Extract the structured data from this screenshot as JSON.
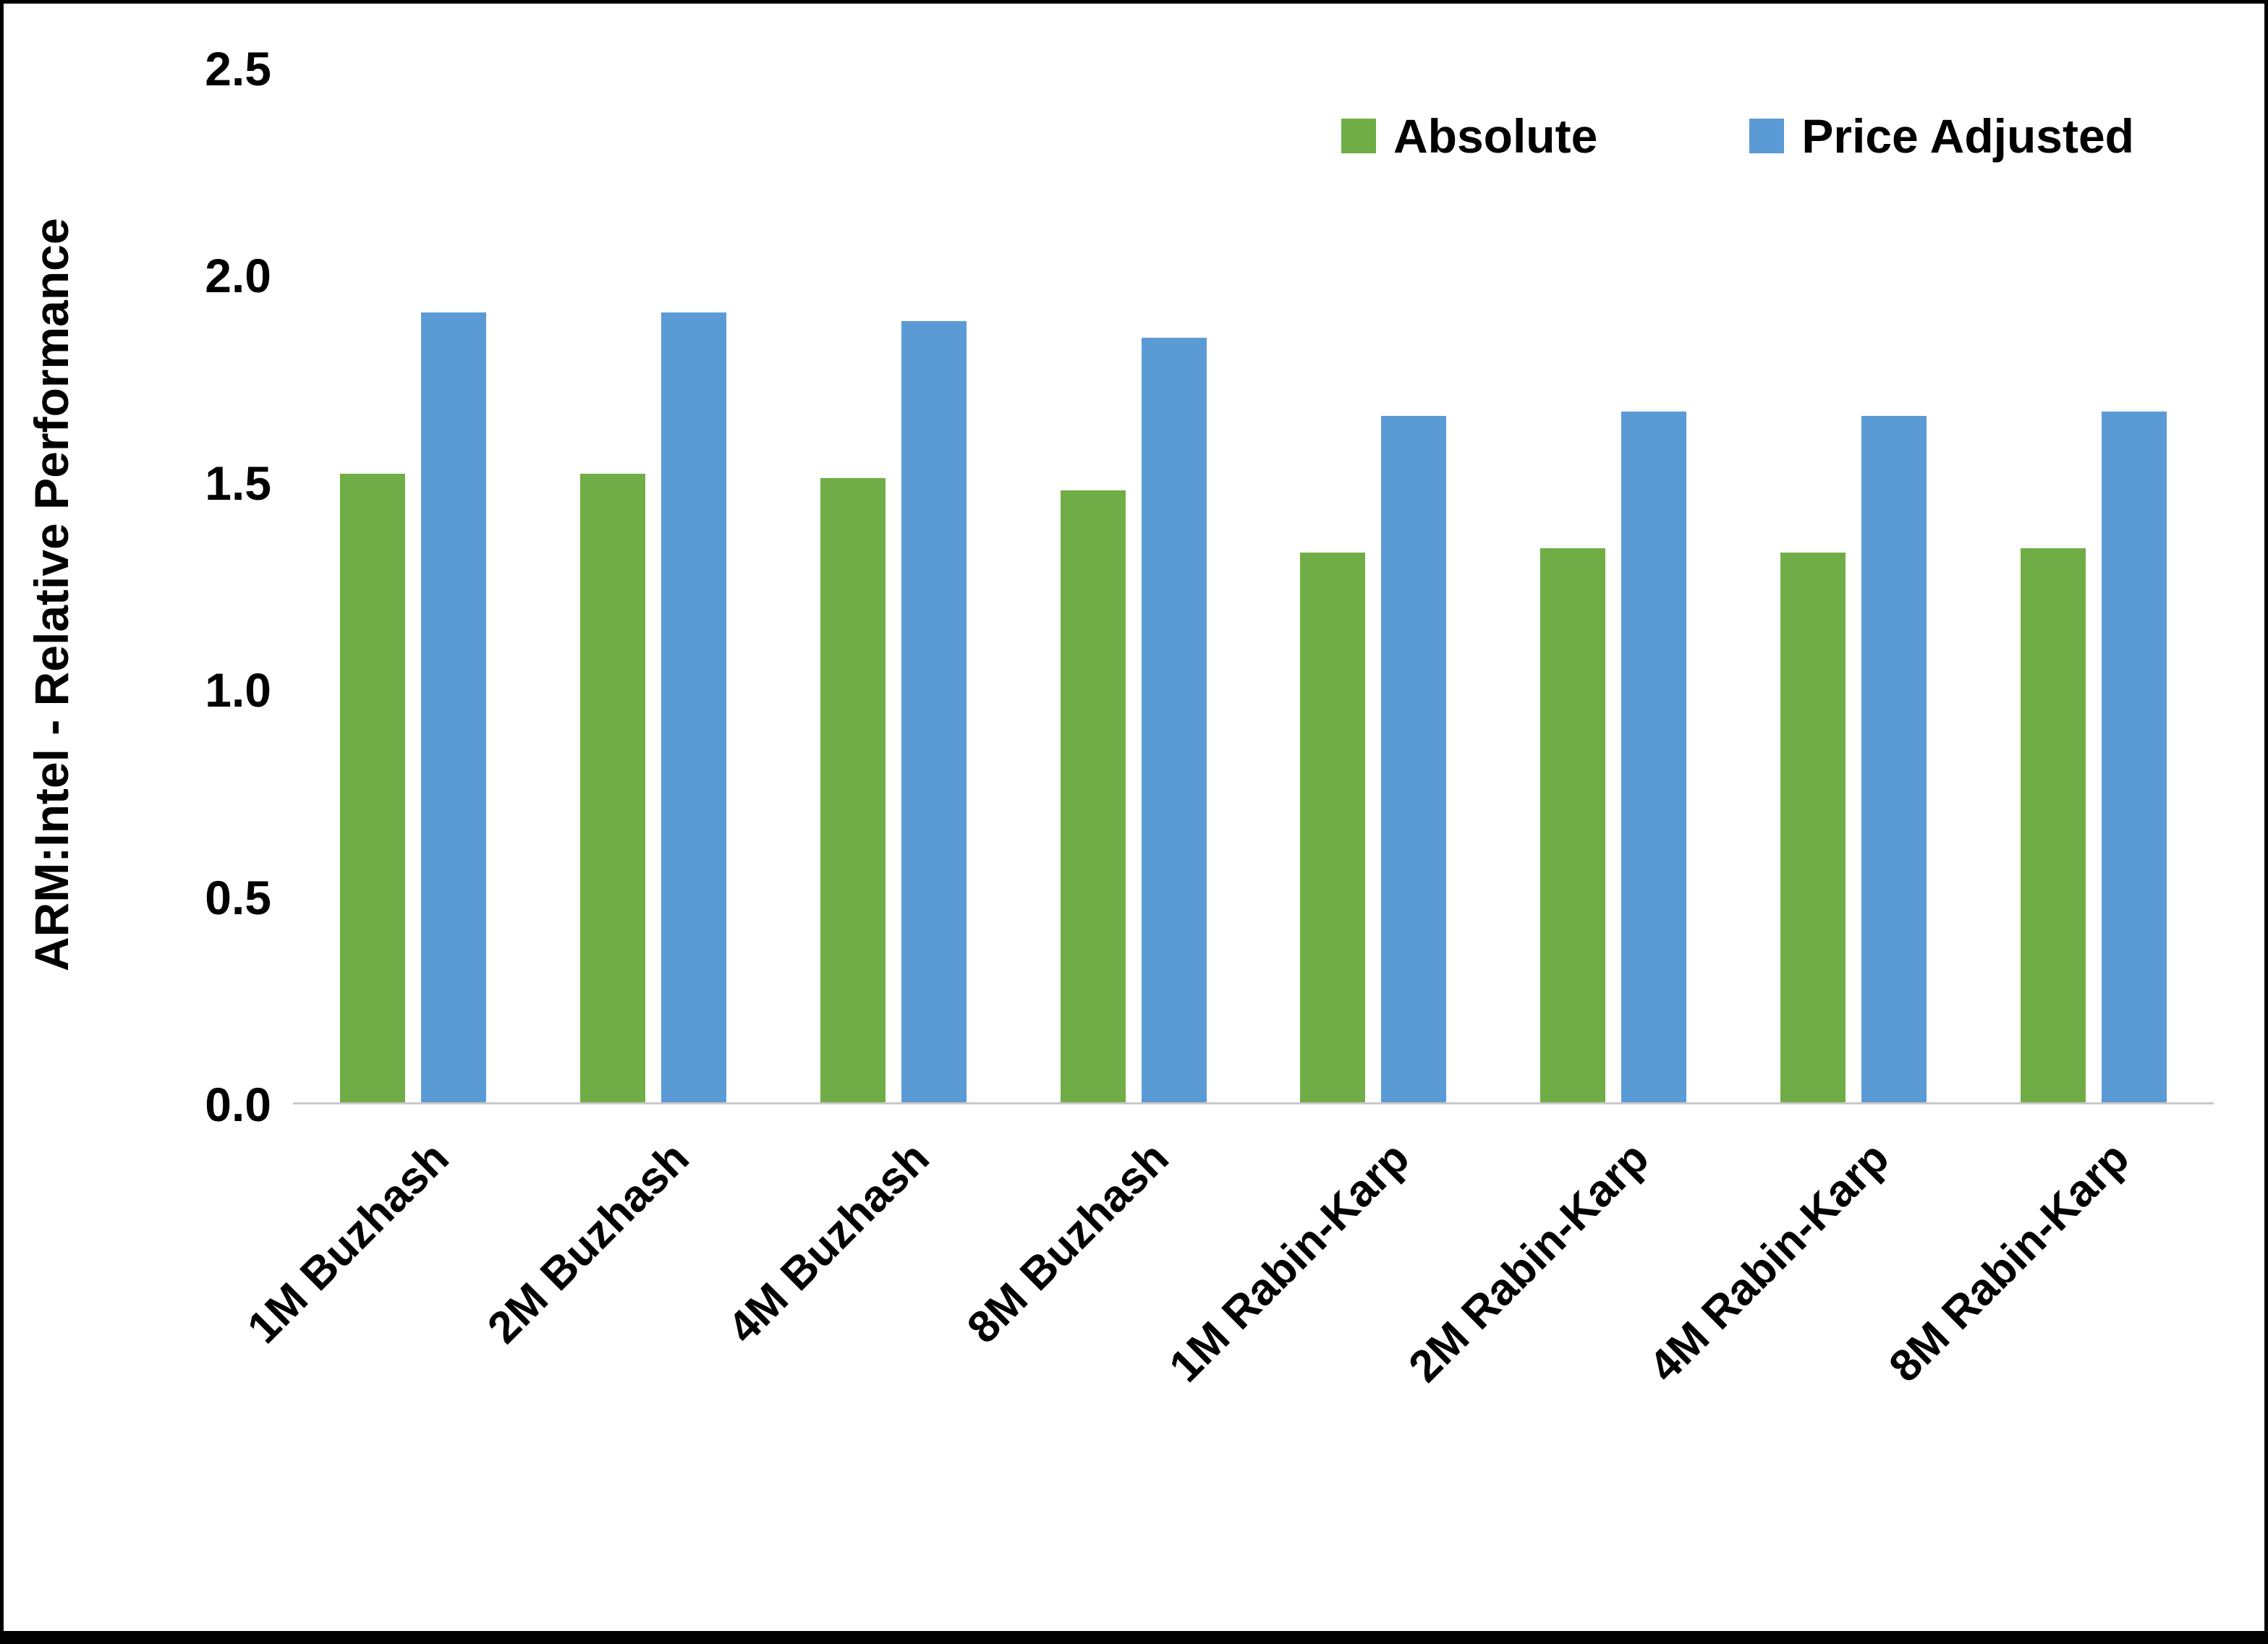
{
  "chart_data": {
    "type": "bar",
    "title": "",
    "ylabel": "ARM:Intel - Relative Performance",
    "xlabel": "",
    "ylim": [
      0,
      2.5
    ],
    "yticks": [
      0.0,
      0.5,
      1.0,
      1.5,
      2.0,
      2.5
    ],
    "ytick_labels": [
      "0.0",
      "0.5",
      "1.0",
      "1.5",
      "2.0",
      "2.5"
    ],
    "grid": false,
    "legend_position": "top-right",
    "categories": [
      "1M Buzhash",
      "2M Buzhash",
      "4M Buzhash",
      "8M Buzhash",
      "1M Rabin-Karp",
      "2M Rabin-Karp",
      "4M Rabin-Karp",
      "8M Rabin-Karp"
    ],
    "series": [
      {
        "name": "Absolute",
        "color": "#70AD47",
        "values": [
          1.52,
          1.52,
          1.51,
          1.48,
          1.33,
          1.34,
          1.33,
          1.34
        ]
      },
      {
        "name": "Price Adjusted",
        "color": "#5B9BD5",
        "values": [
          1.91,
          1.91,
          1.89,
          1.85,
          1.66,
          1.67,
          1.66,
          1.67
        ]
      }
    ],
    "colors": {
      "absolute": "#70AD47",
      "price_adjusted": "#5B9BD5",
      "axis_line": "#c9c9c9",
      "text": "#000000"
    }
  }
}
